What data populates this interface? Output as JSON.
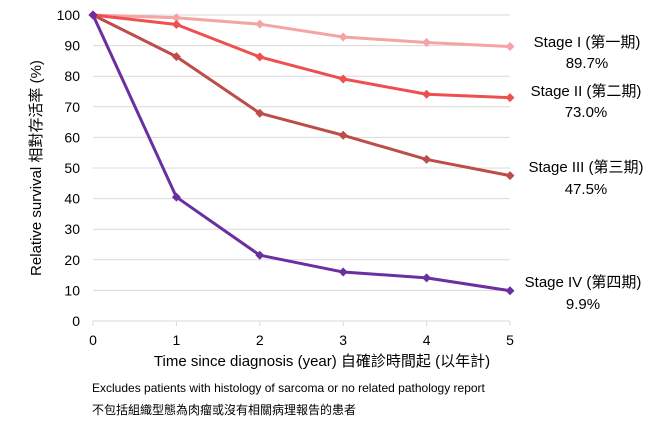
{
  "chart_data": {
    "type": "line",
    "xlabel": "Time since diagnosis (year) 自確診時間起 (以年計)",
    "ylabel": "Relative survival 相對存活率 (%)",
    "x": [
      0,
      1,
      2,
      3,
      4,
      5
    ],
    "xlim": [
      0,
      5
    ],
    "ylim": [
      0,
      100
    ],
    "yticks": [
      0,
      10,
      20,
      30,
      40,
      50,
      60,
      70,
      80,
      90,
      100
    ],
    "grid": "horizontal",
    "series": [
      {
        "name": "Stage I (第一期)",
        "end_label": "89.7%",
        "color": "#f4a5a3",
        "values": [
          100,
          99.1,
          97.0,
          92.8,
          91.0,
          89.7
        ]
      },
      {
        "name": "Stage II (第二期)",
        "end_label": "73.0%",
        "color": "#ee4f4f",
        "values": [
          100,
          96.9,
          86.3,
          79.1,
          74.1,
          73.0
        ]
      },
      {
        "name": "Stage III (第三期)",
        "end_label": "47.5%",
        "color": "#bd4d4a",
        "values": [
          100,
          86.4,
          67.9,
          60.7,
          52.8,
          47.5
        ]
      },
      {
        "name": "Stage IV (第四期)",
        "end_label": "9.9%",
        "color": "#6a2fa0",
        "values": [
          100,
          40.5,
          21.5,
          16.0,
          14.1,
          9.9
        ]
      }
    ]
  },
  "footnote": {
    "line1": "Excludes patients with histology of sarcoma or no related pathology report",
    "line2": "不包括組織型態為肉瘤或沒有相關病理報告的患者"
  }
}
